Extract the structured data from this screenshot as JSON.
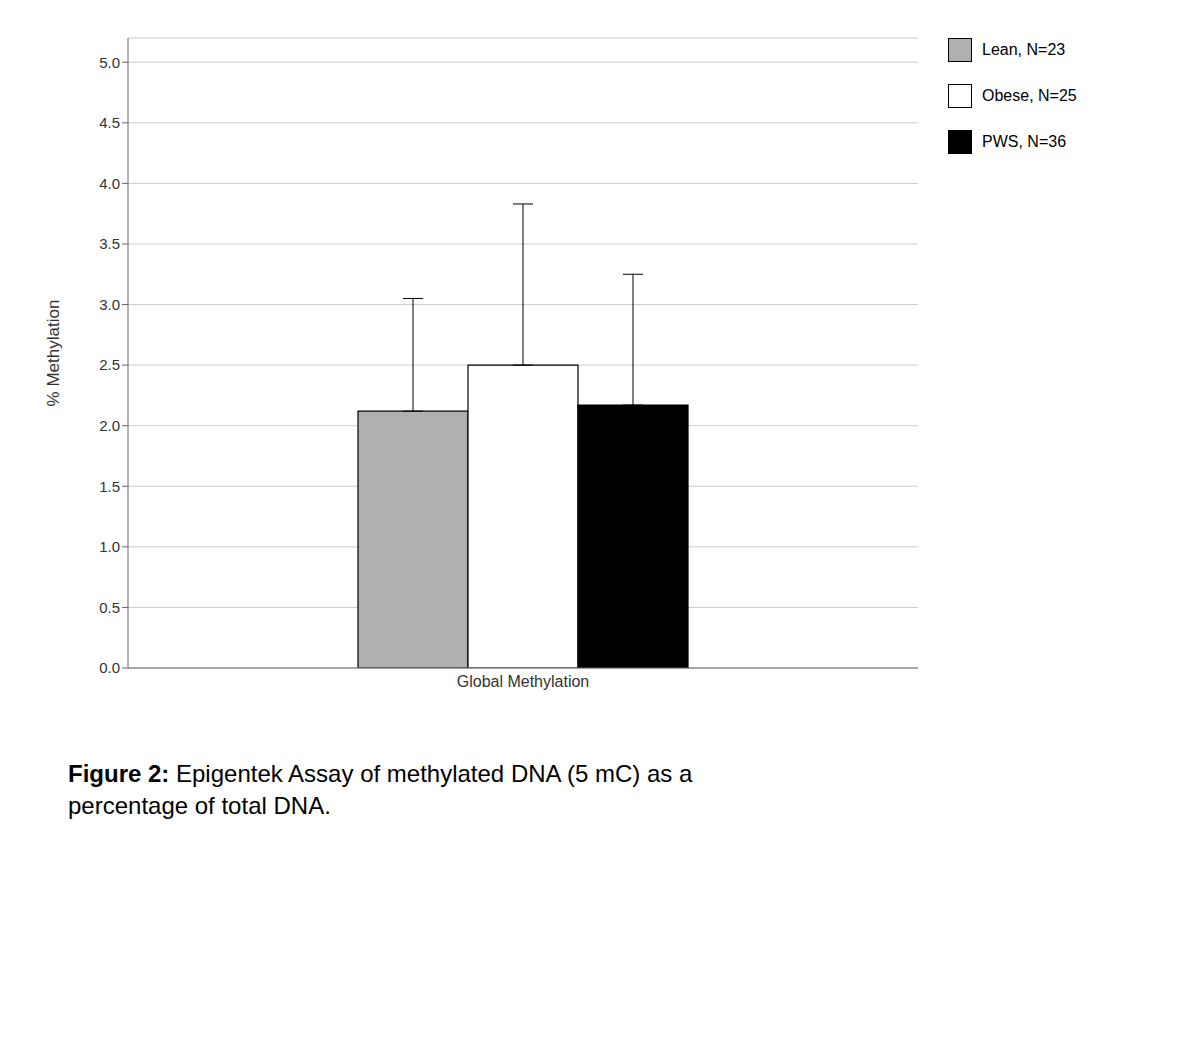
{
  "chart_data": {
    "type": "bar",
    "categories": [
      "Global Methylation"
    ],
    "series": [
      {
        "name": "Lean, N=23",
        "color": "#b0b0b0",
        "values": [
          2.12
        ],
        "errors": [
          0.93
        ]
      },
      {
        "name": "Obese, N=25",
        "color": "#ffffff",
        "values": [
          2.5
        ],
        "errors": [
          1.33
        ]
      },
      {
        "name": "PWS, N=36",
        "color": "#000000",
        "values": [
          2.17
        ],
        "errors": [
          1.08
        ]
      }
    ],
    "ylabel": "% Methylation",
    "ylim": [
      0,
      5.2
    ],
    "yticks": [
      {
        "value": 0,
        "label": "0.0"
      },
      0.5,
      {
        "value": 1.0,
        "label": "1.0"
      },
      1.5,
      {
        "value": 2.0,
        "label": "2.0"
      },
      2.5,
      {
        "value": 3.0,
        "label": "3.0"
      },
      3.5,
      {
        "value": 4.0,
        "label": "4.0"
      },
      4.5,
      {
        "value": 5.0,
        "label": "5.0"
      }
    ],
    "grid": true,
    "legend": "right",
    "annotations": [
      "Figure 2:",
      "Epigentek Assay of methylated DNA (5 mC) as a\npercentage of total DNA."
    ]
  }
}
